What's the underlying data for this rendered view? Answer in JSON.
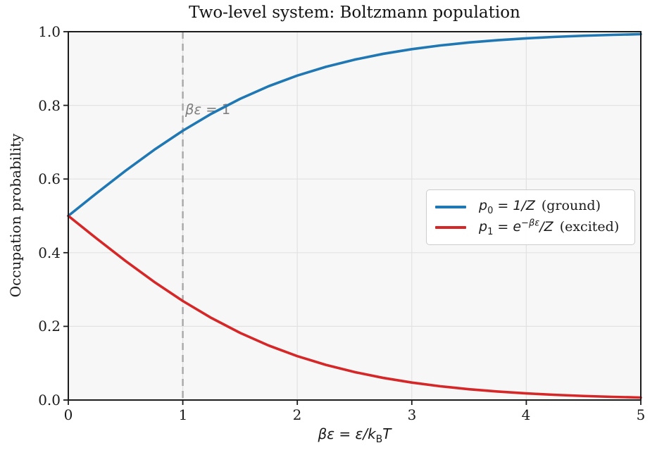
{
  "chart_data": {
    "type": "line",
    "title": "Two-level system: Boltzmann population",
    "ylabel": "Occupation probability",
    "xlabel_text": "βε = ε/k_B T",
    "xlabel_parts": {
      "math_pre": "βε = ε/k",
      "sub": "B",
      "math_post": "T"
    },
    "xlim": [
      0,
      5
    ],
    "ylim": [
      0,
      1
    ],
    "grid": true,
    "legend_position": "center right",
    "xticks": [
      "0",
      "1",
      "2",
      "3",
      "4",
      "5"
    ],
    "xtick_values": [
      0,
      1,
      2,
      3,
      4,
      5
    ],
    "yticks": [
      "0.0",
      "0.2",
      "0.4",
      "0.6",
      "0.8",
      "1.0"
    ],
    "ytick_values": [
      0.0,
      0.2,
      0.4,
      0.6,
      0.8,
      1.0
    ],
    "x": [
      0,
      0.25,
      0.5,
      0.75,
      1,
      1.25,
      1.5,
      1.75,
      2,
      2.25,
      2.5,
      2.75,
      3,
      3.25,
      3.5,
      3.75,
      4,
      4.25,
      4.5,
      4.75,
      5
    ],
    "series": [
      {
        "name": "p0 = 1/Z (ground)",
        "color": "#1f77b4",
        "values": [
          0.5,
          0.5622,
          0.6225,
          0.6792,
          0.7311,
          0.7773,
          0.8176,
          0.852,
          0.8808,
          0.9046,
          0.9241,
          0.9399,
          0.9526,
          0.9627,
          0.9707,
          0.977,
          0.982,
          0.9859,
          0.989,
          0.9914,
          0.9933
        ]
      },
      {
        "name": "p1 = e^(-βε)/Z (excited)",
        "color": "#d62728",
        "values": [
          0.5,
          0.4378,
          0.3775,
          0.3208,
          0.2689,
          0.2227,
          0.1824,
          0.148,
          0.1192,
          0.0954,
          0.0759,
          0.0601,
          0.0474,
          0.0373,
          0.0293,
          0.023,
          0.018,
          0.0141,
          0.011,
          0.0086,
          0.0067
        ]
      }
    ],
    "vline": {
      "x": 1,
      "style": "dashed",
      "color": "#a8a8a8"
    },
    "annotation": {
      "text": "βε = 1",
      "x": 1.05,
      "y": 0.79,
      "color": "#7f7f7f"
    },
    "colors": {
      "plot_bg": "#f7f7f7",
      "grid": "#e2e2e2",
      "spine": "#1c1c1c",
      "ground": "#1f77b4",
      "excited": "#d62728"
    }
  },
  "annotation_parts": {
    "math": "βε",
    "plain": " = 1"
  },
  "legend": {
    "entries": [
      {
        "var": "p",
        "sub": "0",
        "eq_pre": " = 1/Z",
        "sup": "",
        "eq_post": "",
        "note": "(ground)",
        "color": "#1f77b4"
      },
      {
        "var": "p",
        "sub": "1",
        "eq_pre": " = e",
        "sup": "−βε",
        "eq_post": "/Z",
        "note": "(excited)",
        "color": "#d62728"
      }
    ]
  }
}
